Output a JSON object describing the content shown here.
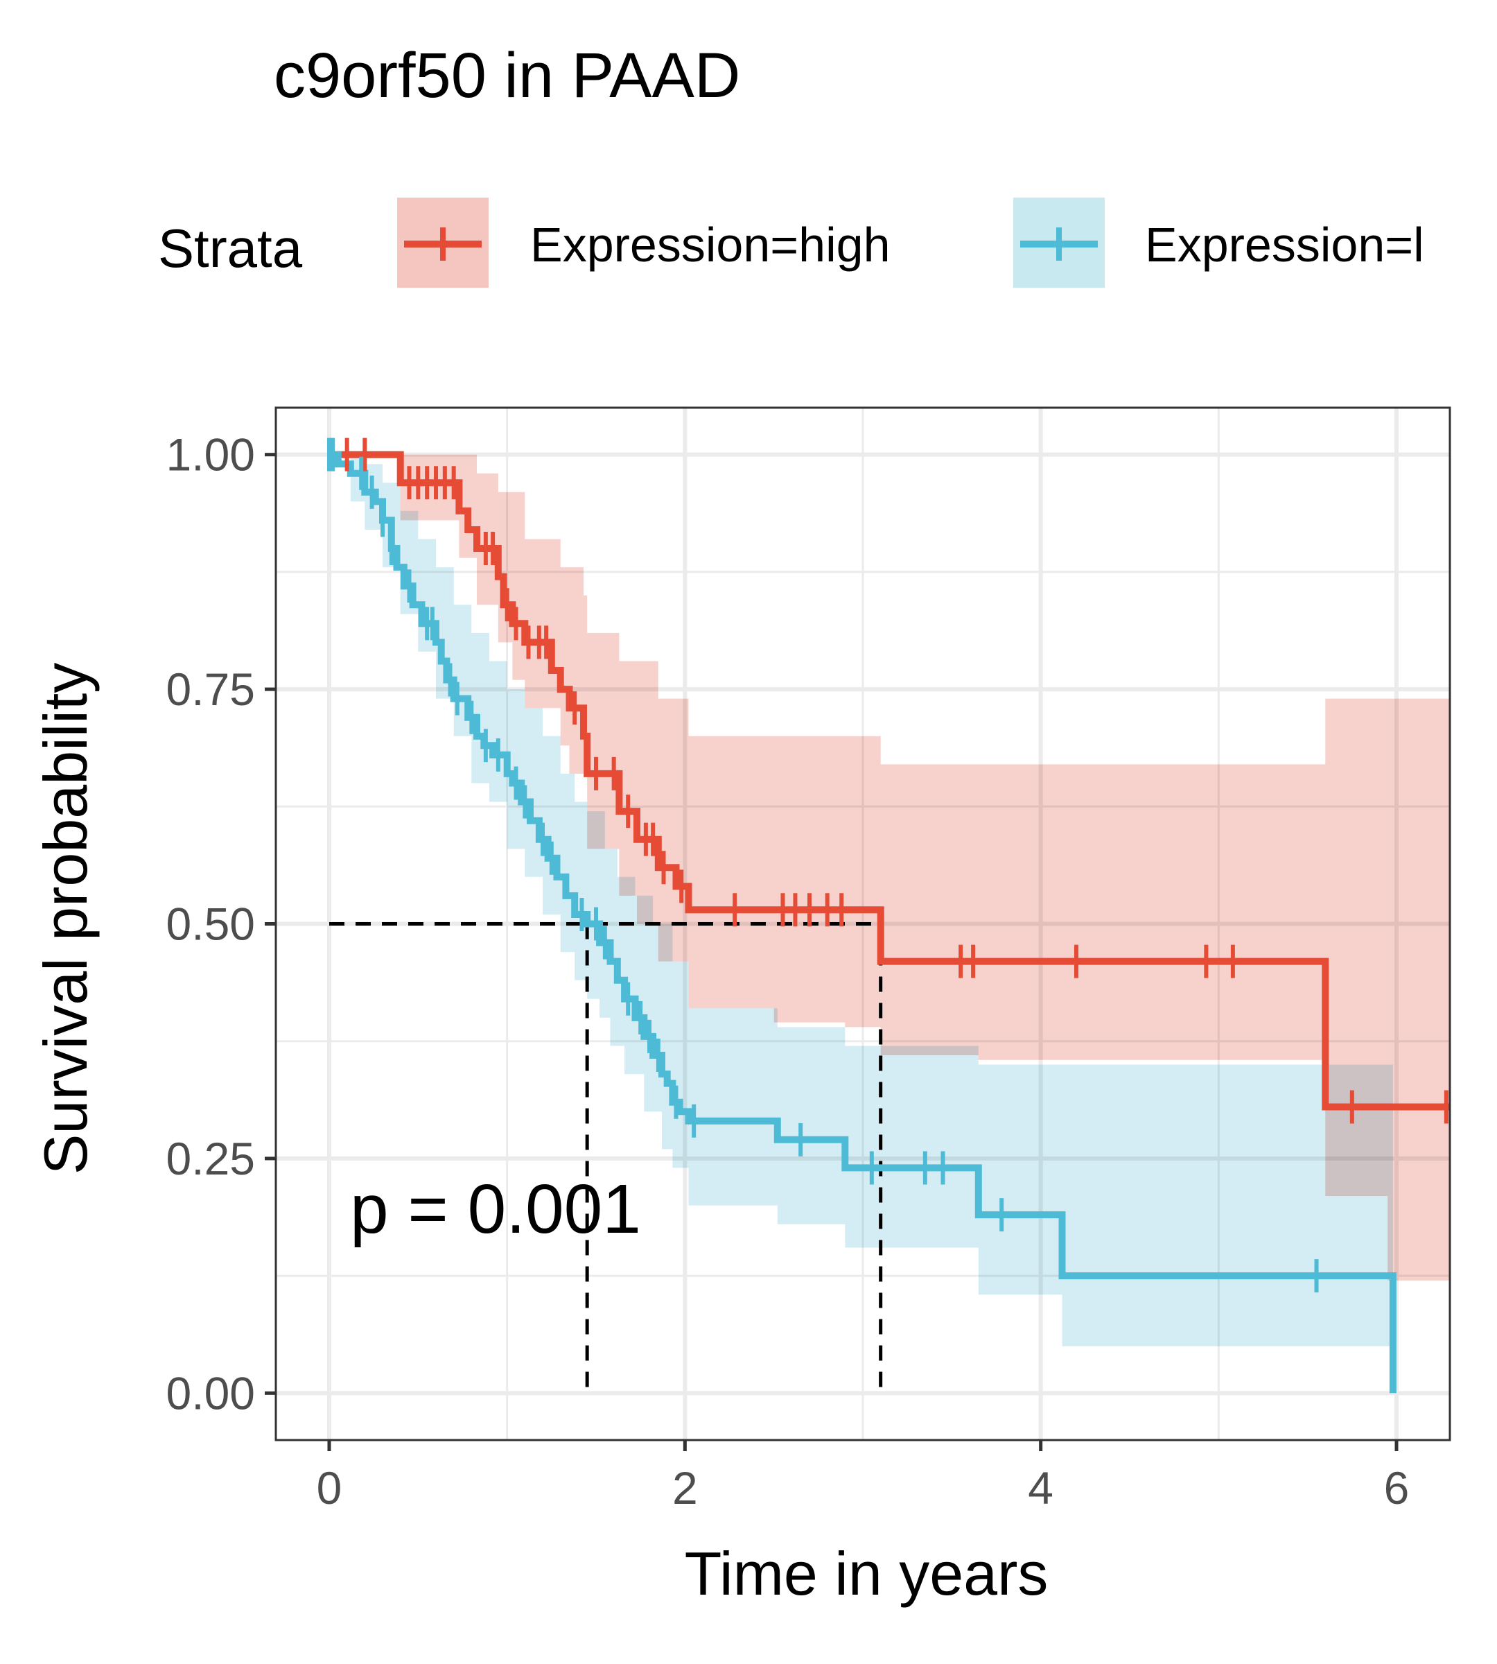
{
  "chart_data": {
    "type": "line",
    "subtype": "kaplan-meier",
    "title": "c9orf50 in PAAD",
    "xlabel": "Time in years",
    "ylabel": "Survival probability",
    "xlim": [
      -0.3,
      6.3
    ],
    "ylim": [
      -0.05,
      1.05
    ],
    "xticks": [
      0,
      2,
      4,
      6
    ],
    "xtick_labels": [
      "0",
      "2",
      "4",
      "6"
    ],
    "yticks": [
      0,
      0.25,
      0.5,
      0.75,
      1.0
    ],
    "ytick_labels": [
      "0.00",
      "0.25",
      "0.50",
      "0.75",
      "1.00"
    ],
    "minor_xticks": [
      1,
      3,
      5
    ],
    "minor_yticks": [
      0.125,
      0.375,
      0.625,
      0.875
    ],
    "grid": true,
    "legend": {
      "title": "Strata",
      "position": "top",
      "entries": [
        "Expression=high",
        "Expression=l"
      ]
    },
    "annotation": "p = 0.001",
    "median_survival": [
      1.45,
      3.1
    ],
    "series": [
      {
        "name": "Expression=high",
        "color": "#E64B35",
        "fill": "#F5C5BF",
        "steps": [
          [
            0,
            1.0
          ],
          [
            0.4,
            0.97
          ],
          [
            0.73,
            0.94
          ],
          [
            0.78,
            0.92
          ],
          [
            0.83,
            0.9
          ],
          [
            0.95,
            0.87
          ],
          [
            0.98,
            0.84
          ],
          [
            1.03,
            0.82
          ],
          [
            1.1,
            0.8
          ],
          [
            1.25,
            0.77
          ],
          [
            1.3,
            0.75
          ],
          [
            1.35,
            0.73
          ],
          [
            1.43,
            0.7
          ],
          [
            1.45,
            0.66
          ],
          [
            1.63,
            0.62
          ],
          [
            1.73,
            0.59
          ],
          [
            1.85,
            0.56
          ],
          [
            1.95,
            0.54
          ],
          [
            2.02,
            0.515
          ],
          [
            3.1,
            0.46
          ],
          [
            5.6,
            0.305
          ],
          [
            6.3,
            0.305
          ]
        ],
        "upper": [
          [
            0,
            1.0
          ],
          [
            0.4,
            1.0
          ],
          [
            0.73,
            1.0
          ],
          [
            0.83,
            0.98
          ],
          [
            0.95,
            0.96
          ],
          [
            1.1,
            0.91
          ],
          [
            1.3,
            0.88
          ],
          [
            1.43,
            0.85
          ],
          [
            1.45,
            0.81
          ],
          [
            1.63,
            0.78
          ],
          [
            1.85,
            0.74
          ],
          [
            2.02,
            0.7
          ],
          [
            3.1,
            0.67
          ],
          [
            5.6,
            0.74
          ],
          [
            6.3,
            0.74
          ]
        ],
        "lower": [
          [
            0,
            1.0
          ],
          [
            0.4,
            0.93
          ],
          [
            0.73,
            0.89
          ],
          [
            0.83,
            0.84
          ],
          [
            0.95,
            0.8
          ],
          [
            1.03,
            0.76
          ],
          [
            1.1,
            0.73
          ],
          [
            1.3,
            0.69
          ],
          [
            1.35,
            0.66
          ],
          [
            1.45,
            0.58
          ],
          [
            1.63,
            0.53
          ],
          [
            1.73,
            0.5
          ],
          [
            1.85,
            0.46
          ],
          [
            2.02,
            0.41
          ],
          [
            2.5,
            0.395
          ],
          [
            2.9,
            0.39
          ],
          [
            3.1,
            0.36
          ],
          [
            3.65,
            0.355
          ],
          [
            5.6,
            0.21
          ],
          [
            5.95,
            0.12
          ],
          [
            6.3,
            0.12
          ]
        ],
        "censor_times": [
          0.1,
          0.2,
          0.45,
          0.5,
          0.55,
          0.6,
          0.65,
          0.7,
          0.88,
          0.92,
          1.0,
          1.05,
          1.12,
          1.18,
          1.22,
          1.38,
          1.5,
          1.6,
          1.68,
          1.78,
          1.82,
          1.88,
          1.98,
          2.28,
          2.55,
          2.62,
          2.7,
          2.8,
          2.88,
          3.55,
          3.62,
          4.2,
          4.93,
          5.08,
          5.75,
          6.28
        ]
      },
      {
        "name": "Expression=l",
        "color": "#4DBBD5",
        "fill": "#C9E9F1",
        "steps": [
          [
            0,
            1.0
          ],
          [
            0.05,
            0.99
          ],
          [
            0.12,
            0.98
          ],
          [
            0.2,
            0.96
          ],
          [
            0.26,
            0.95
          ],
          [
            0.3,
            0.93
          ],
          [
            0.35,
            0.9
          ],
          [
            0.38,
            0.88
          ],
          [
            0.42,
            0.86
          ],
          [
            0.47,
            0.84
          ],
          [
            0.52,
            0.82
          ],
          [
            0.6,
            0.8
          ],
          [
            0.63,
            0.78
          ],
          [
            0.66,
            0.76
          ],
          [
            0.7,
            0.74
          ],
          [
            0.78,
            0.72
          ],
          [
            0.83,
            0.7
          ],
          [
            0.87,
            0.69
          ],
          [
            0.92,
            0.68
          ],
          [
            1.0,
            0.66
          ],
          [
            1.03,
            0.65
          ],
          [
            1.08,
            0.63
          ],
          [
            1.13,
            0.61
          ],
          [
            1.18,
            0.59
          ],
          [
            1.23,
            0.57
          ],
          [
            1.28,
            0.55
          ],
          [
            1.33,
            0.53
          ],
          [
            1.38,
            0.51
          ],
          [
            1.45,
            0.5
          ],
          [
            1.52,
            0.48
          ],
          [
            1.58,
            0.46
          ],
          [
            1.62,
            0.44
          ],
          [
            1.66,
            0.42
          ],
          [
            1.72,
            0.4
          ],
          [
            1.77,
            0.38
          ],
          [
            1.82,
            0.36
          ],
          [
            1.87,
            0.34
          ],
          [
            1.9,
            0.33
          ],
          [
            1.93,
            0.31
          ],
          [
            1.97,
            0.3
          ],
          [
            2.02,
            0.29
          ],
          [
            2.52,
            0.27
          ],
          [
            2.9,
            0.24
          ],
          [
            3.65,
            0.19
          ],
          [
            4.12,
            0.125
          ],
          [
            5.98,
            0.0
          ]
        ],
        "upper": [
          [
            0,
            1.0
          ],
          [
            0.12,
            1.0
          ],
          [
            0.2,
            0.99
          ],
          [
            0.3,
            0.97
          ],
          [
            0.4,
            0.94
          ],
          [
            0.5,
            0.91
          ],
          [
            0.6,
            0.88
          ],
          [
            0.7,
            0.84
          ],
          [
            0.8,
            0.81
          ],
          [
            0.9,
            0.78
          ],
          [
            1.0,
            0.75
          ],
          [
            1.1,
            0.73
          ],
          [
            1.2,
            0.7
          ],
          [
            1.3,
            0.66
          ],
          [
            1.38,
            0.63
          ],
          [
            1.45,
            0.62
          ],
          [
            1.55,
            0.58
          ],
          [
            1.62,
            0.55
          ],
          [
            1.72,
            0.53
          ],
          [
            1.82,
            0.5
          ],
          [
            1.93,
            0.46
          ],
          [
            2.02,
            0.41
          ],
          [
            2.52,
            0.39
          ],
          [
            2.9,
            0.37
          ],
          [
            3.65,
            0.35
          ],
          [
            4.12,
            0.35
          ],
          [
            5.98,
            0.35
          ]
        ],
        "lower": [
          [
            0,
            1.0
          ],
          [
            0.12,
            0.95
          ],
          [
            0.2,
            0.92
          ],
          [
            0.3,
            0.88
          ],
          [
            0.4,
            0.83
          ],
          [
            0.5,
            0.79
          ],
          [
            0.6,
            0.74
          ],
          [
            0.7,
            0.7
          ],
          [
            0.8,
            0.65
          ],
          [
            0.9,
            0.63
          ],
          [
            1.0,
            0.58
          ],
          [
            1.1,
            0.55
          ],
          [
            1.2,
            0.51
          ],
          [
            1.3,
            0.47
          ],
          [
            1.38,
            0.44
          ],
          [
            1.45,
            0.42
          ],
          [
            1.52,
            0.4
          ],
          [
            1.58,
            0.37
          ],
          [
            1.66,
            0.34
          ],
          [
            1.77,
            0.3
          ],
          [
            1.87,
            0.26
          ],
          [
            1.93,
            0.24
          ],
          [
            2.02,
            0.2
          ],
          [
            2.52,
            0.18
          ],
          [
            2.9,
            0.155
          ],
          [
            3.65,
            0.105
          ],
          [
            4.12,
            0.05
          ],
          [
            5.98,
            0.05
          ]
        ],
        "censor_times": [
          0,
          0.02,
          0.18,
          0.24,
          0.3,
          0.35,
          0.45,
          0.55,
          0.58,
          0.68,
          0.72,
          0.8,
          0.88,
          0.95,
          1.05,
          1.1,
          1.2,
          1.25,
          1.42,
          1.5,
          1.55,
          1.68,
          1.75,
          1.8,
          1.85,
          1.95,
          2.05,
          2.65,
          3.05,
          3.35,
          3.45,
          3.78,
          5.55
        ]
      }
    ]
  }
}
